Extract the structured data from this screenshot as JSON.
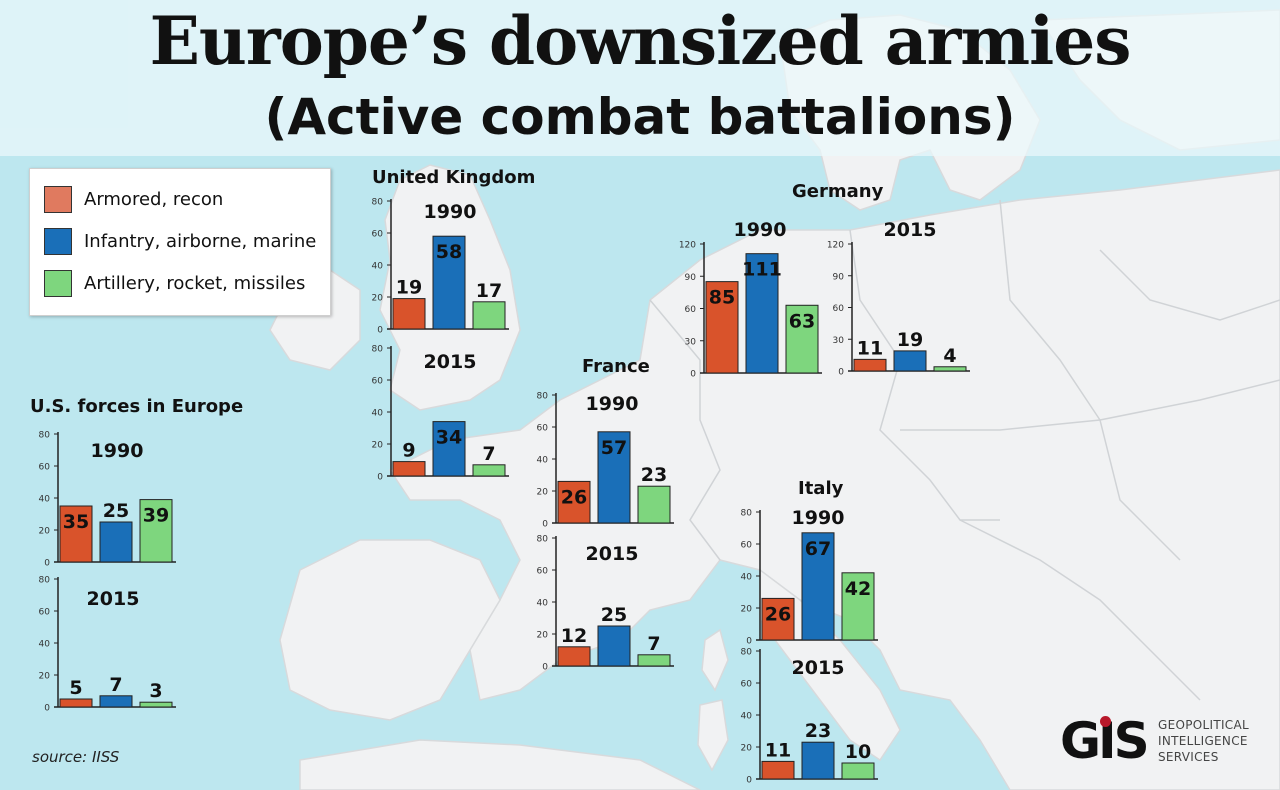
{
  "title": "Europe’s downsized armies",
  "subtitle": "(Active combat battalions)",
  "legend": {
    "items": [
      {
        "label": "Armored, recon",
        "color": "#d9532b"
      },
      {
        "label": "Infantry, airborne, marine",
        "color": "#1a6fb8"
      },
      {
        "label": "Artillery, rocket, missiles",
        "color": "#7ed67e"
      }
    ]
  },
  "colors": {
    "armored": "#d9532b",
    "infantry": "#1a6fb8",
    "artillery": "#7ed67e",
    "logo_dot": "#b8182a"
  },
  "source": "source: IISS",
  "logo": {
    "mark": "GIS",
    "line1": "GEOPOLITICAL",
    "line2": "INTELLIGENCE",
    "line3": "SERVICES"
  },
  "chart_data": [
    {
      "type": "bar",
      "region": "United Kingdom",
      "year": "1990",
      "categories": [
        "Armored, recon",
        "Infantry, airborne, marine",
        "Artillery, rocket, missiles"
      ],
      "values": [
        19,
        58,
        17
      ],
      "ylim": [
        0,
        80
      ],
      "yticks": [
        0,
        20,
        40,
        60,
        80
      ]
    },
    {
      "type": "bar",
      "region": "",
      "year": "2015",
      "categories": [
        "Armored, recon",
        "Infantry, airborne, marine",
        "Artillery, rocket, missiles"
      ],
      "values": [
        9,
        34,
        7
      ],
      "ylim": [
        0,
        80
      ],
      "yticks": [
        0,
        20,
        40,
        60,
        80
      ]
    },
    {
      "type": "bar",
      "region": "Germany",
      "year": "1990",
      "categories": [
        "Armored, recon",
        "Infantry, airborne, marine",
        "Artillery, rocket, missiles"
      ],
      "values": [
        85,
        111,
        63
      ],
      "ylim": [
        0,
        120
      ],
      "yticks": [
        0,
        30,
        60,
        90,
        120
      ]
    },
    {
      "type": "bar",
      "region": "",
      "year": "2015",
      "categories": [
        "Armored, recon",
        "Infantry, airborne, marine",
        "Artillery, rocket, missiles"
      ],
      "values": [
        11,
        19,
        4
      ],
      "ylim": [
        0,
        120
      ],
      "yticks": [
        0,
        30,
        60,
        90,
        120
      ]
    },
    {
      "type": "bar",
      "region": "France",
      "year": "1990",
      "categories": [
        "Armored, recon",
        "Infantry, airborne, marine",
        "Artillery, rocket, missiles"
      ],
      "values": [
        26,
        57,
        23
      ],
      "ylim": [
        0,
        80
      ],
      "yticks": [
        0,
        20,
        40,
        60,
        80
      ]
    },
    {
      "type": "bar",
      "region": "",
      "year": "2015",
      "categories": [
        "Armored, recon",
        "Infantry, airborne, marine",
        "Artillery, rocket, missiles"
      ],
      "values": [
        12,
        25,
        7
      ],
      "ylim": [
        0,
        80
      ],
      "yticks": [
        0,
        20,
        40,
        60,
        80
      ]
    },
    {
      "type": "bar",
      "region": "Italy",
      "year": "1990",
      "categories": [
        "Armored, recon",
        "Infantry, airborne, marine",
        "Artillery, rocket, missiles"
      ],
      "values": [
        26,
        67,
        42
      ],
      "ylim": [
        0,
        80
      ],
      "yticks": [
        0,
        20,
        40,
        60,
        80
      ]
    },
    {
      "type": "bar",
      "region": "",
      "year": "2015",
      "categories": [
        "Armored, recon",
        "Infantry, airborne, marine",
        "Artillery, rocket, missiles"
      ],
      "values": [
        11,
        23,
        10
      ],
      "ylim": [
        0,
        80
      ],
      "yticks": [
        0,
        20,
        40,
        60,
        80
      ]
    },
    {
      "type": "bar",
      "region": "U.S. forces in Europe",
      "year": "1990",
      "categories": [
        "Armored, recon",
        "Infantry, airborne, marine",
        "Artillery, rocket, missiles"
      ],
      "values": [
        35,
        25,
        39
      ],
      "ylim": [
        0,
        80
      ],
      "yticks": [
        0,
        20,
        40,
        60,
        80
      ]
    },
    {
      "type": "bar",
      "region": "",
      "year": "2015",
      "categories": [
        "Armored, recon",
        "Infantry, airborne, marine",
        "Artillery, rocket, missiles"
      ],
      "values": [
        5,
        7,
        3
      ],
      "ylim": [
        0,
        80
      ],
      "yticks": [
        0,
        20,
        40,
        60,
        80
      ]
    }
  ]
}
